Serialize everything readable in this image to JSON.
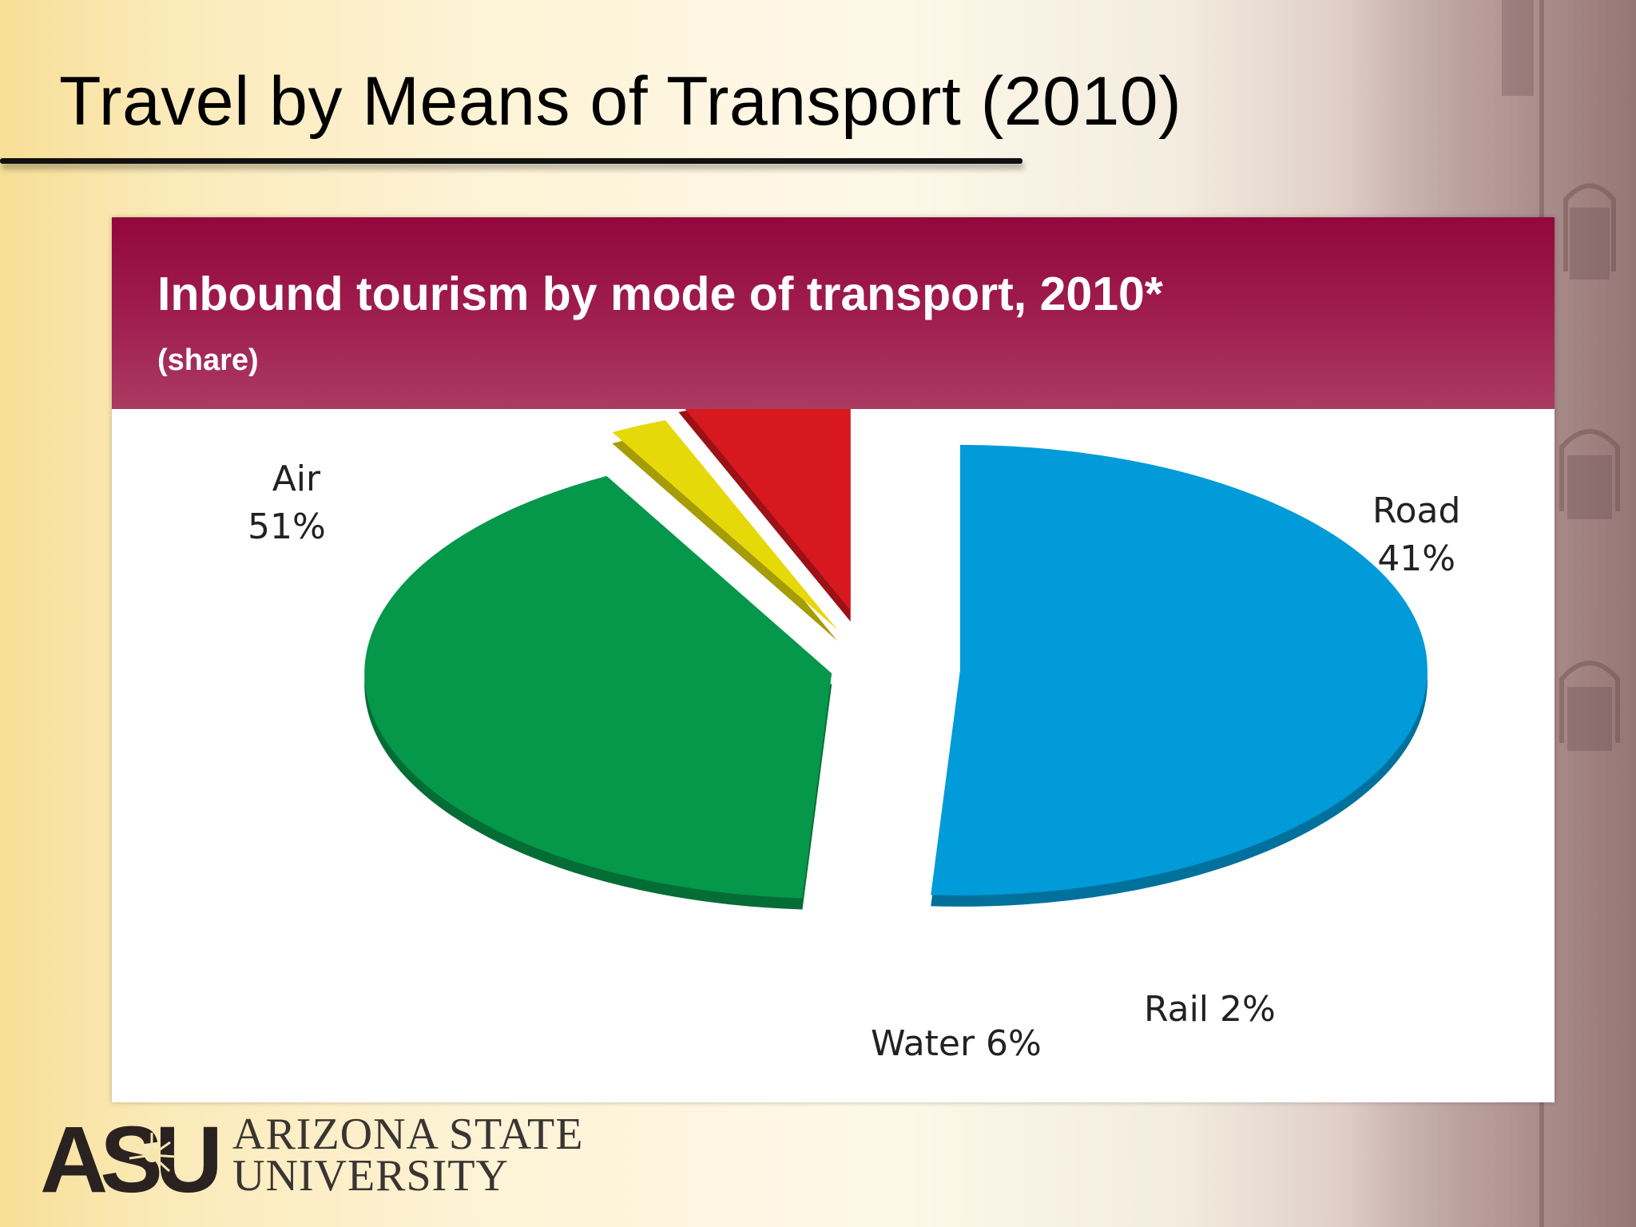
{
  "slide": {
    "title": "Travel by Means of Transport (2010)"
  },
  "chart_data": {
    "type": "pie",
    "title": "Inbound tourism by mode of transport, 2010*",
    "subtitle": "(share)",
    "slices": [
      {
        "name": "Air",
        "value": 51,
        "label": "51%",
        "color": "#009bd8"
      },
      {
        "name": "Road",
        "value": 41,
        "label": "41%",
        "color": "#05974a"
      },
      {
        "name": "Rail",
        "value": 2,
        "label": "Rail 2%",
        "color": "#e6d90a"
      },
      {
        "name": "Water",
        "value": 6,
        "label": "Water 6%",
        "color": "#d8181f"
      }
    ],
    "exploded": true,
    "three_d": true,
    "header_color": "#93073c"
  },
  "logo": {
    "mark": "ASU",
    "line1": "ARIZONA STATE",
    "line2": "UNIVERSITY"
  }
}
